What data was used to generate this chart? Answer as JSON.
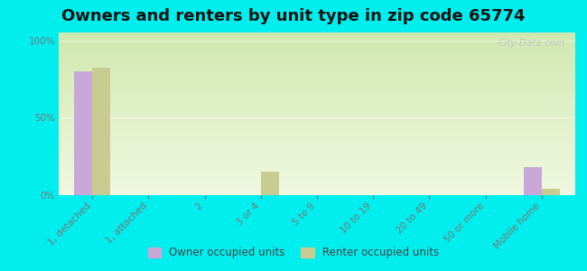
{
  "title": "Owners and renters by unit type in zip code 65774",
  "categories": [
    "1, detached",
    "1, attached",
    "2",
    "3 or 4",
    "5 to 9",
    "10 to 19",
    "20 to 49",
    "50 or more",
    "Mobile home"
  ],
  "owner_values": [
    80,
    0,
    0,
    0,
    0,
    0,
    0,
    0,
    18
  ],
  "renter_values": [
    82,
    0,
    0,
    15,
    0,
    0,
    0,
    0,
    4
  ],
  "owner_color": "#c9a8d8",
  "renter_color": "#c8cc90",
  "background_outer": "#00eeee",
  "grad_top": "#d0e8b0",
  "grad_bottom": "#f0f8e0",
  "ylabel_ticks": [
    "0%",
    "50%",
    "100%"
  ],
  "ytick_vals": [
    0,
    50,
    100
  ],
  "ylim": [
    0,
    105
  ],
  "bar_width": 0.32,
  "watermark": "City-Data.com",
  "legend_owner": "Owner occupied units",
  "legend_renter": "Renter occupied units",
  "title_fontsize": 13,
  "tick_color": "#777777"
}
